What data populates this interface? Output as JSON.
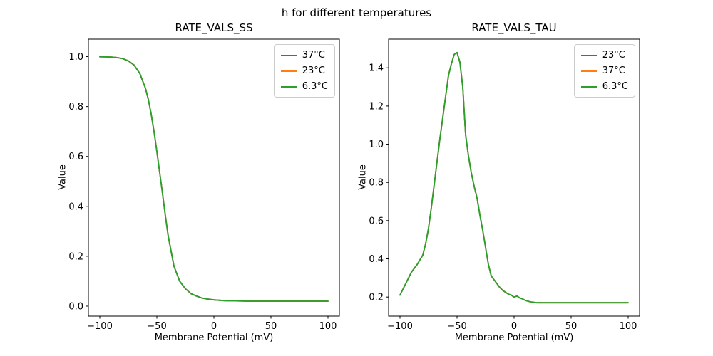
{
  "figure": {
    "title": "h for different temperatures",
    "background": "#ffffff",
    "text_color": "#000000"
  },
  "chart_data": [
    {
      "type": "line",
      "title": "RATE_VALS_SS",
      "xlabel": "Membrane Potential (mV)",
      "ylabel": "Value",
      "xlim": [
        -110,
        110
      ],
      "ylim": [
        -0.04,
        1.07
      ],
      "xticks": [
        -100,
        -50,
        0,
        50,
        100
      ],
      "yticks": [
        0.0,
        0.2,
        0.4,
        0.6,
        0.8,
        1.0
      ],
      "grid": false,
      "legend_position": "upper right",
      "series_note": "all three temperature curves are identical and overlap exactly; only the last-drawn (green) curve is visible",
      "x": [
        -100,
        -95,
        -90,
        -85,
        -80,
        -75,
        -70,
        -65,
        -60,
        -57.5,
        -55,
        -52.5,
        -50,
        -47.5,
        -45,
        -42.5,
        -40,
        -35,
        -30,
        -25,
        -20,
        -15,
        -10,
        -5,
        0,
        10,
        20,
        30,
        40,
        50,
        60,
        70,
        80,
        90,
        100
      ],
      "y_shared": [
        0.9995,
        0.999,
        0.998,
        0.996,
        0.992,
        0.983,
        0.966,
        0.933,
        0.873,
        0.829,
        0.77,
        0.7,
        0.62,
        0.535,
        0.45,
        0.36,
        0.28,
        0.16,
        0.1,
        0.07,
        0.05,
        0.04,
        0.032,
        0.028,
        0.025,
        0.022,
        0.021,
        0.02,
        0.02,
        0.02,
        0.02,
        0.02,
        0.02,
        0.02,
        0.02
      ],
      "series": [
        {
          "name": "37°C",
          "color": "#1f77b4"
        },
        {
          "name": "23°C",
          "color": "#ff7f0e"
        },
        {
          "name": "6.3°C",
          "color": "#2ca02c"
        }
      ]
    },
    {
      "type": "line",
      "title": "RATE_VALS_TAU",
      "xlabel": "Membrane Potential (mV)",
      "ylabel": "Value",
      "xlim": [
        -110,
        110
      ],
      "ylim": [
        0.1,
        1.55
      ],
      "xticks": [
        -100,
        -50,
        0,
        50,
        100
      ],
      "yticks": [
        0.2,
        0.4,
        0.6,
        0.8,
        1.0,
        1.2,
        1.4
      ],
      "grid": false,
      "legend_position": "upper right",
      "series_note": "all three temperature curves are identical and overlap exactly; only the last-drawn (green) curve is visible; peak ~1.48 at ~-50 mV",
      "x": [
        -100,
        -95,
        -90,
        -85,
        -80,
        -77.5,
        -75,
        -72.5,
        -70,
        -67.5,
        -65,
        -62.5,
        -60,
        -57.5,
        -55,
        -52.5,
        -50,
        -47.5,
        -45,
        -42.5,
        -40,
        -37.5,
        -35,
        -32.5,
        -30,
        -27.5,
        -25,
        -22.5,
        -20,
        -17.5,
        -15,
        -12.5,
        -10,
        -7.5,
        -5,
        -2.5,
        0,
        2.5,
        5,
        7.5,
        10,
        12.5,
        15,
        17.5,
        20,
        25,
        30,
        40,
        50,
        60,
        70,
        80,
        90,
        100
      ],
      "y_shared": [
        0.21,
        0.27,
        0.33,
        0.37,
        0.42,
        0.48,
        0.56,
        0.67,
        0.79,
        0.91,
        1.03,
        1.14,
        1.25,
        1.36,
        1.42,
        1.47,
        1.48,
        1.43,
        1.3,
        1.05,
        0.94,
        0.85,
        0.78,
        0.72,
        0.63,
        0.55,
        0.46,
        0.37,
        0.31,
        0.29,
        0.27,
        0.25,
        0.235,
        0.225,
        0.215,
        0.21,
        0.2,
        0.205,
        0.195,
        0.19,
        0.182,
        0.178,
        0.174,
        0.172,
        0.17,
        0.17,
        0.17,
        0.17,
        0.17,
        0.17,
        0.17,
        0.17,
        0.17,
        0.17
      ],
      "series": [
        {
          "name": "23°C",
          "color": "#1f77b4"
        },
        {
          "name": "37°C",
          "color": "#ff7f0e"
        },
        {
          "name": "6.3°C",
          "color": "#2ca02c"
        }
      ]
    }
  ]
}
